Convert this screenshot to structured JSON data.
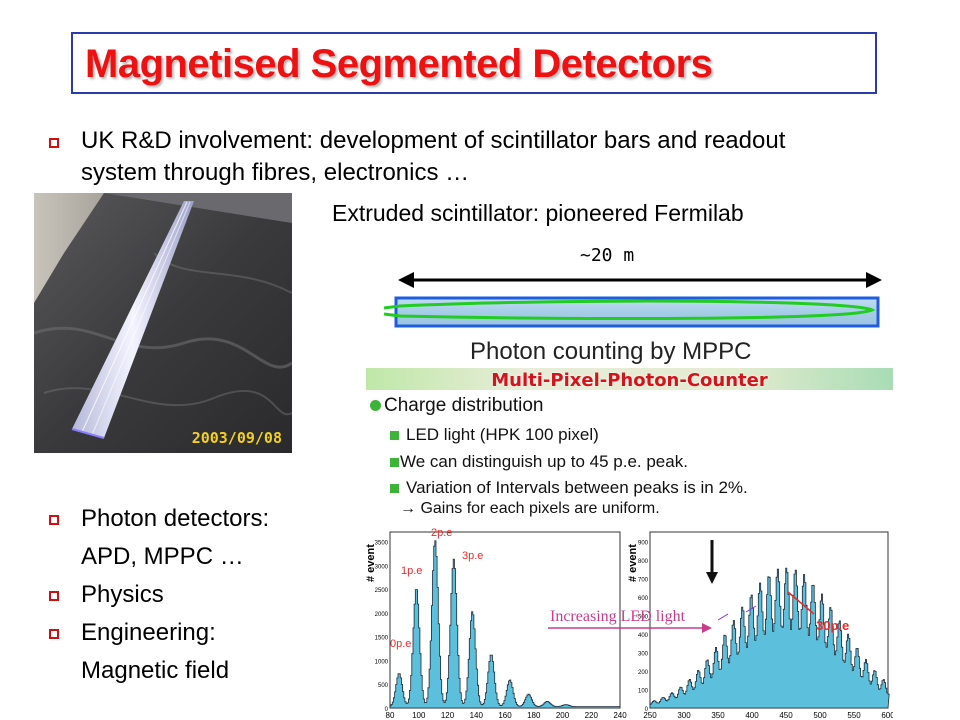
{
  "slide": {
    "title": "Magnetised Segmented Detectors",
    "bullet1": {
      "line1": "UK R&D involvement: development of scintillator bars and readout",
      "line2": "system through fibres, electronics …"
    },
    "extruded_caption": "Extruded scintillator: pioneered Fermilab",
    "photo_date": "2003/09/08",
    "length_label": "~20 m",
    "lower_bullets": [
      {
        "text": "Photon detectors:",
        "continuation": "APD, MPPC …"
      },
      {
        "text": "Physics"
      },
      {
        "text": "Engineering:",
        "continuation": "Magnetic field"
      }
    ]
  },
  "mppc_panel": {
    "title": "Photon counting by MPPC",
    "subtitle": "Multi-Pixel-Photon-Counter",
    "heading": "Charge distribution",
    "items": [
      "LED light (HPK 100 pixel)",
      "We can distinguish up to 45 p.e. peak.",
      "Variation of Intervals between peaks is in 2%."
    ],
    "sub_note": "→ Gains for each pixels are uniform.",
    "colors": {
      "fill": "#5cc0dc",
      "accent": "#e82a2a",
      "bullet": "#3cb437"
    }
  },
  "chart_data": [
    {
      "type": "bar",
      "ylabel": "# event",
      "xlim": [
        80,
        240
      ],
      "x_tick_labels": [
        "80",
        "100",
        "120",
        "140",
        "160",
        "180",
        "200",
        "220",
        "240"
      ],
      "y_tick_labels": [
        "0",
        "500",
        "1000",
        "1500",
        "2000",
        "2500",
        "3000",
        "3500"
      ],
      "ylim": [
        0,
        3700
      ],
      "annotations": [
        "0p.e",
        "1p.e",
        "2p.e",
        "3p.e"
      ],
      "peaks": [
        {
          "x": 86,
          "y": 700
        },
        {
          "x": 98,
          "y": 2500
        },
        {
          "x": 111,
          "y": 3500
        },
        {
          "x": 124,
          "y": 3100
        },
        {
          "x": 137,
          "y": 2000
        },
        {
          "x": 150,
          "y": 1100
        },
        {
          "x": 163,
          "y": 560
        },
        {
          "x": 176,
          "y": 260
        },
        {
          "x": 189,
          "y": 110
        },
        {
          "x": 202,
          "y": 40
        }
      ]
    },
    {
      "type": "bar",
      "ylabel": "# event",
      "xlim": [
        250,
        600
      ],
      "x_tick_labels": [
        "250",
        "300",
        "350",
        "400",
        "450",
        "500",
        "550",
        "600"
      ],
      "y_tick_labels": [
        "0",
        "100",
        "200",
        "300",
        "400",
        "500",
        "600",
        "700",
        "800",
        "900"
      ],
      "ylim": [
        0,
        950
      ],
      "annotations": [
        "Increasing LED light",
        "30p.e"
      ],
      "envelope": {
        "center": 450,
        "sigma": 80,
        "peak": 760
      },
      "peak_spacing": 13
    }
  ]
}
